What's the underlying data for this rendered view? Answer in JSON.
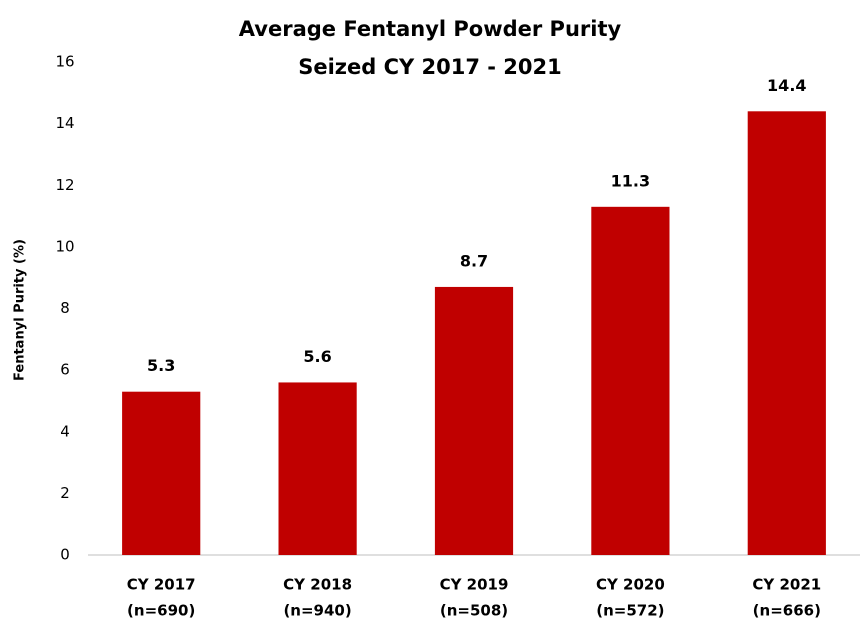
{
  "chart_data": {
    "type": "bar",
    "title": "Average Fentanyl Powder Purity",
    "subtitle": "Seized CY 2017 - 2021",
    "y_label": "Fentanyl Purity (%)",
    "categories": [
      "CY 2017",
      "CY 2018",
      "CY 2019",
      "CY 2020",
      "CY 2021"
    ],
    "category_sublabels": [
      "(n=690)",
      "(n=940)",
      "(n=508)",
      "(n=572)",
      "(n=666)"
    ],
    "values": [
      5.3,
      5.6,
      8.7,
      11.3,
      14.4
    ],
    "color": "#c00000",
    "ylim": [
      0,
      16
    ],
    "yticks": [
      0,
      2,
      4,
      6,
      8,
      10,
      12,
      14,
      16
    ],
    "grid": false
  }
}
